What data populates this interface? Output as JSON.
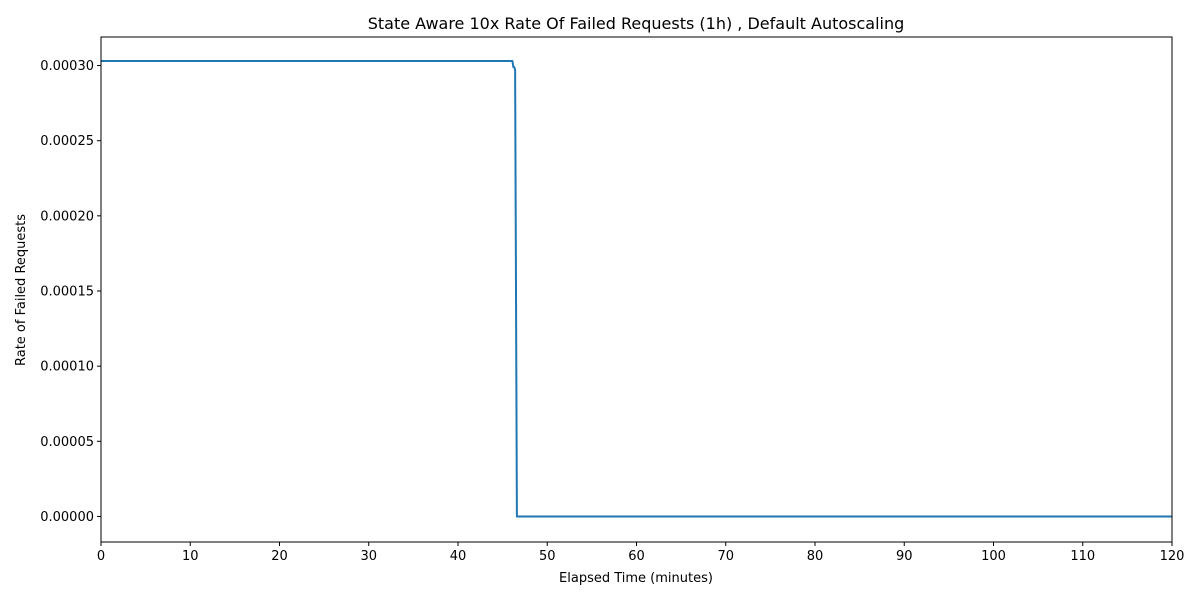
{
  "chart_data": {
    "type": "line",
    "title": "State Aware 10x Rate Of Failed Requests (1h) , Default Autoscaling",
    "xlabel": "Elapsed Time (minutes)",
    "ylabel": "Rate of Failed Requests",
    "xlim": [
      0,
      120
    ],
    "ylim": [
      -1.7e-05,
      0.000319
    ],
    "xticks": [
      0,
      10,
      20,
      30,
      40,
      50,
      60,
      70,
      80,
      90,
      100,
      110,
      120
    ],
    "xtick_labels": [
      "0",
      "10",
      "20",
      "30",
      "40",
      "50",
      "60",
      "70",
      "80",
      "90",
      "100",
      "110",
      "120"
    ],
    "yticks": [
      0,
      5e-05,
      0.0001,
      0.00015,
      0.0002,
      0.00025,
      0.0003
    ],
    "ytick_labels": [
      "0.00000",
      "0.00005",
      "0.00010",
      "0.00015",
      "0.00020",
      "0.00025",
      "0.00030"
    ],
    "grid": false,
    "legend": "none",
    "series": [
      {
        "color": "#1f77b4",
        "x": [
          0,
          46.1,
          46.2,
          46.3,
          46.4,
          46.6,
          120
        ],
        "y": [
          0.000303,
          0.000303,
          0.000299,
          0.000299,
          0.000297,
          0,
          0
        ]
      }
    ]
  }
}
